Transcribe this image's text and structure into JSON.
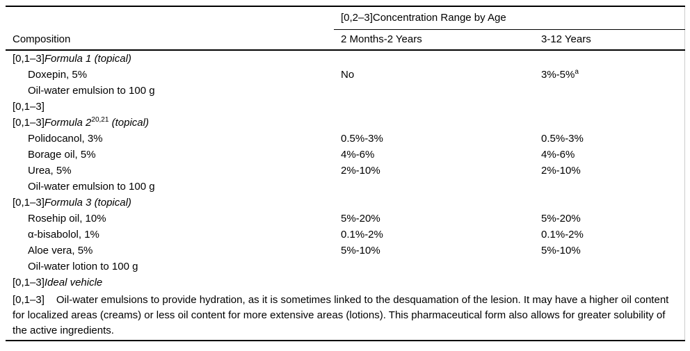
{
  "page": {
    "background": "#ffffff",
    "text_color": "#000000",
    "rule_color": "#000000",
    "faint_edge_color": "#cccccc"
  },
  "table": {
    "span_header": "[0,2–3]Concentration Range by Age",
    "columns": [
      "Composition",
      "2 Months-2 Years",
      "3-12 Years"
    ],
    "rows": [
      {
        "indent": false,
        "prefix": "[0,1–3]",
        "italic": "Formula 1 (topical)",
        "sup": "",
        "italic2": "",
        "text": "",
        "c2": "",
        "c3": "",
        "c3_sup": ""
      },
      {
        "indent": true,
        "prefix": "",
        "italic": "",
        "sup": "",
        "italic2": "",
        "text": "Doxepin, 5%",
        "c2": "No",
        "c3": "3%-5%",
        "c3_sup": "a"
      },
      {
        "indent": true,
        "prefix": "",
        "italic": "",
        "sup": "",
        "italic2": "",
        "text": "Oil-water emulsion to 100 g",
        "c2": "",
        "c3": "",
        "c3_sup": ""
      },
      {
        "indent": false,
        "prefix": "[0,1–3]",
        "italic": "",
        "sup": "",
        "italic2": "",
        "text": "",
        "c2": "",
        "c3": "",
        "c3_sup": ""
      },
      {
        "indent": false,
        "prefix": "[0,1–3]",
        "italic": "Formula 2",
        "sup": "20,21",
        "italic2": " (topical)",
        "text": "",
        "c2": "",
        "c3": "",
        "c3_sup": ""
      },
      {
        "indent": true,
        "prefix": "",
        "italic": "",
        "sup": "",
        "italic2": "",
        "text": "Polidocanol, 3%",
        "c2": "0.5%-3%",
        "c3": "0.5%-3%",
        "c3_sup": ""
      },
      {
        "indent": true,
        "prefix": "",
        "italic": "",
        "sup": "",
        "italic2": "",
        "text": "Borage oil, 5%",
        "c2": "4%-6%",
        "c3": "4%-6%",
        "c3_sup": ""
      },
      {
        "indent": true,
        "prefix": "",
        "italic": "",
        "sup": "",
        "italic2": "",
        "text": "Urea, 5%",
        "c2": "2%-10%",
        "c3": "2%-10%",
        "c3_sup": ""
      },
      {
        "indent": true,
        "prefix": "",
        "italic": "",
        "sup": "",
        "italic2": "",
        "text": "Oil-water emulsion to 100 g",
        "c2": "",
        "c3": "",
        "c3_sup": ""
      },
      {
        "indent": false,
        "prefix": "[0,1–3]",
        "italic": "Formula 3 (topical)",
        "sup": "",
        "italic2": "",
        "text": "",
        "c2": "",
        "c3": "",
        "c3_sup": ""
      },
      {
        "indent": true,
        "prefix": "",
        "italic": "",
        "sup": "",
        "italic2": "",
        "text": "Rosehip oil, 10%",
        "c2": "5%-20%",
        "c3": "5%-20%",
        "c3_sup": ""
      },
      {
        "indent": true,
        "prefix": "",
        "italic": "",
        "sup": "",
        "italic2": "",
        "text": "α-bisabolol, 1%",
        "c2": "0.1%-2%",
        "c3": "0.1%-2%",
        "c3_sup": ""
      },
      {
        "indent": true,
        "prefix": "",
        "italic": "",
        "sup": "",
        "italic2": "",
        "text": "Aloe vera, 5%",
        "c2": "5%-10%",
        "c3": "5%-10%",
        "c3_sup": ""
      },
      {
        "indent": true,
        "prefix": "",
        "italic": "",
        "sup": "",
        "italic2": "",
        "text": "Oil-water lotion to 100 g",
        "c2": "",
        "c3": "",
        "c3_sup": ""
      },
      {
        "indent": false,
        "prefix": "[0,1–3]",
        "italic": "Ideal vehicle",
        "sup": "",
        "italic2": "",
        "text": "",
        "c2": "",
        "c3": "",
        "c3_sup": ""
      }
    ],
    "footnote": {
      "prefix": "[0,1–3]",
      "text": "Oil-water emulsions to provide hydration, as it is sometimes linked to the desquamation of the lesion. It may have a higher oil content for localized areas (creams) or less oil content for more extensive areas (lotions). This pharmaceutical form also allows for greater solubility of the active ingredients."
    }
  }
}
